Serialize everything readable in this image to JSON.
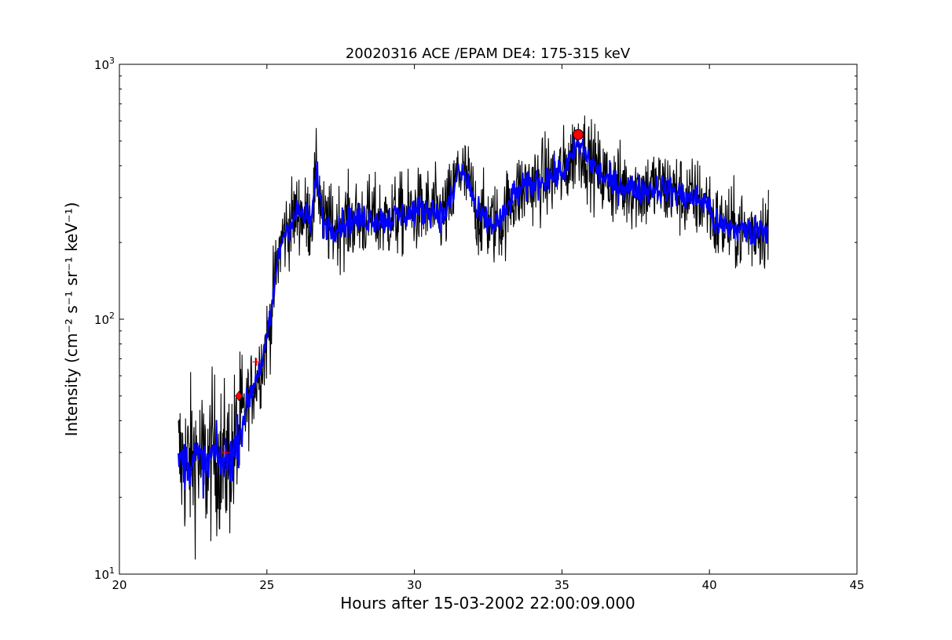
{
  "chart_data": {
    "type": "line",
    "title": "20020316 ACE /EPAM DE4: 175-315 keV",
    "xlabel": "Hours after 15-03-2002 22:00:09.000",
    "ylabel": "Intensity (cm⁻² s⁻¹ sr⁻¹ keV⁻¹)",
    "xlim": [
      20,
      45
    ],
    "ylim": [
      10,
      1000
    ],
    "yscale": "log",
    "grid": false,
    "x_ticks": [
      "20",
      "25",
      "30",
      "35",
      "40",
      "45"
    ],
    "y_ticks": [
      {
        "base": "10",
        "exp": "1"
      },
      {
        "base": "10",
        "exp": "2"
      },
      {
        "base": "10",
        "exp": "3"
      }
    ],
    "series": [
      {
        "role": "raw",
        "color": "#000000",
        "x": [
          22.0,
          22.3,
          22.6,
          22.9,
          23.2,
          23.5,
          23.8,
          24.0,
          24.3,
          24.6,
          24.9,
          25.1,
          25.3,
          25.5,
          25.7,
          25.9,
          26.1,
          26.3,
          26.5,
          26.7,
          26.9,
          27.2,
          27.6,
          28.0,
          28.5,
          29.0,
          29.5,
          30.0,
          30.5,
          31.0,
          31.3,
          31.5,
          31.7,
          31.9,
          32.1,
          32.3,
          32.6,
          33.0,
          33.3,
          33.6,
          34.0,
          34.5,
          35.0,
          35.3,
          35.5,
          35.7,
          36.0,
          36.3,
          36.7,
          37.2,
          37.7,
          38.2,
          38.7,
          39.2,
          39.7,
          39.95,
          40.2,
          40.6,
          41.0,
          41.4,
          41.8,
          42.0
        ],
        "y": [
          28,
          27,
          29,
          26,
          30,
          27,
          29,
          33,
          45,
          58,
          72,
          95,
          150,
          205,
          230,
          250,
          265,
          250,
          245,
          380,
          240,
          230,
          240,
          245,
          250,
          245,
          255,
          265,
          270,
          255,
          300,
          390,
          360,
          330,
          260,
          250,
          235,
          245,
          300,
          320,
          340,
          360,
          375,
          420,
          480,
          470,
          410,
          370,
          340,
          330,
          320,
          330,
          320,
          300,
          295,
          285,
          235,
          230,
          225,
          220,
          230,
          225
        ],
        "noise": 0.16
      },
      {
        "role": "smoothed",
        "color": "#0000ff",
        "x": [
          22.0,
          22.3,
          22.6,
          22.9,
          23.2,
          23.5,
          23.8,
          24.0,
          24.3,
          24.6,
          24.9,
          25.1,
          25.3,
          25.5,
          25.7,
          25.9,
          26.1,
          26.3,
          26.5,
          26.7,
          26.9,
          27.2,
          27.6,
          28.0,
          28.5,
          29.0,
          29.5,
          30.0,
          30.5,
          31.0,
          31.3,
          31.5,
          31.7,
          31.9,
          32.1,
          32.3,
          32.6,
          33.0,
          33.3,
          33.6,
          34.0,
          34.5,
          35.0,
          35.3,
          35.5,
          35.7,
          36.0,
          36.3,
          36.7,
          37.2,
          37.7,
          38.2,
          38.7,
          39.2,
          39.7,
          39.95,
          40.2,
          40.6,
          41.0,
          41.4,
          41.8,
          42.0
        ],
        "y": [
          28,
          27,
          29,
          26,
          30,
          27,
          29,
          33,
          45,
          58,
          72,
          95,
          150,
          205,
          230,
          250,
          265,
          250,
          245,
          380,
          240,
          230,
          240,
          245,
          250,
          245,
          255,
          265,
          270,
          255,
          300,
          390,
          360,
          330,
          260,
          250,
          235,
          245,
          300,
          320,
          340,
          360,
          375,
          420,
          480,
          470,
          410,
          370,
          340,
          330,
          320,
          330,
          320,
          300,
          295,
          285,
          235,
          230,
          225,
          220,
          230,
          225
        ],
        "noise": 0.06
      }
    ],
    "markers": [
      {
        "kind": "onset-diamond",
        "x": 24.05,
        "y": 50,
        "color": "#ff0000"
      },
      {
        "kind": "peak-circle",
        "x": 35.55,
        "y": 530,
        "color": "#ff0000"
      },
      {
        "kind": "tick-plus",
        "x": 23.6,
        "y": 30,
        "color": "#ff0000"
      },
      {
        "kind": "tick-plus",
        "x": 24.65,
        "y": 68,
        "color": "#ff0000"
      }
    ]
  }
}
